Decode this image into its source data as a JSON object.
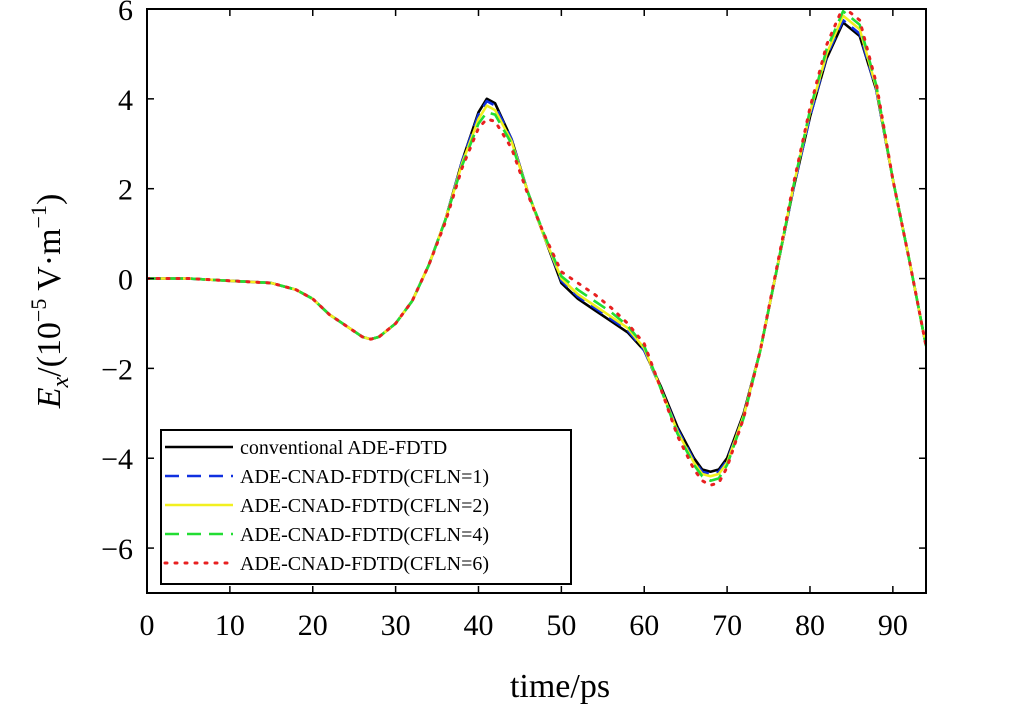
{
  "chart_data": {
    "type": "line",
    "title": "",
    "xlabel": "time/ps",
    "ylabel_parts": {
      "var": "E",
      "sub": "x",
      "pre": "/(10",
      "exp1": "−5",
      "mid": " V·m",
      "exp2": "−1",
      "post": ")"
    },
    "xlim": [
      0,
      94
    ],
    "ylim": [
      -7,
      6
    ],
    "x_ticks": [
      0,
      10,
      20,
      30,
      40,
      50,
      60,
      70,
      80,
      90
    ],
    "y_ticks": [
      -6,
      -4,
      -2,
      0,
      2,
      4,
      6
    ],
    "x_tick_labels": [
      "0",
      "10",
      "20",
      "30",
      "40",
      "50",
      "60",
      "70",
      "80",
      "90"
    ],
    "y_tick_labels": [
      "−6",
      "−4",
      "−2",
      "0",
      "2",
      "4",
      "6"
    ],
    "grid": false,
    "legend_position": "lower-left",
    "series": [
      {
        "name": "conventional ADE-FDTD",
        "color": "#000000",
        "dash": "solid",
        "x": [
          0,
          5,
          10,
          15,
          18,
          20,
          22,
          24,
          26,
          27,
          28,
          30,
          32,
          34,
          36,
          38,
          40,
          41,
          42,
          44,
          46,
          48,
          50,
          52,
          54,
          56,
          58,
          60,
          62,
          64,
          66,
          67,
          68,
          69,
          70,
          72,
          74,
          76,
          78,
          80,
          82,
          84,
          86,
          88,
          90,
          92,
          94
        ],
        "y": [
          0,
          0,
          -0.05,
          -0.1,
          -0.25,
          -0.45,
          -0.8,
          -1.05,
          -1.3,
          -1.35,
          -1.3,
          -1.0,
          -0.5,
          0.3,
          1.3,
          2.6,
          3.7,
          4.0,
          3.9,
          3.1,
          1.9,
          0.9,
          -0.1,
          -0.45,
          -0.7,
          -0.95,
          -1.2,
          -1.6,
          -2.4,
          -3.3,
          -4.0,
          -4.25,
          -4.3,
          -4.25,
          -4.0,
          -3.0,
          -1.6,
          0.2,
          2.0,
          3.6,
          4.9,
          5.7,
          5.4,
          4.2,
          2.2,
          0.4,
          -1.5
        ]
      },
      {
        "name": "ADE-CNAD-FDTD(CFLN=1)",
        "color": "#1030e0",
        "dash": "dash",
        "x": [
          0,
          5,
          10,
          15,
          18,
          20,
          22,
          24,
          26,
          27,
          28,
          30,
          32,
          34,
          36,
          38,
          40,
          41,
          42,
          44,
          46,
          48,
          50,
          52,
          54,
          56,
          58,
          60,
          62,
          64,
          66,
          67,
          68,
          69,
          70,
          72,
          74,
          76,
          78,
          80,
          82,
          84,
          86,
          88,
          90,
          92,
          94
        ],
        "y": [
          0,
          0,
          -0.05,
          -0.1,
          -0.25,
          -0.45,
          -0.8,
          -1.05,
          -1.3,
          -1.35,
          -1.3,
          -1.0,
          -0.5,
          0.3,
          1.3,
          2.6,
          3.65,
          3.95,
          3.85,
          3.1,
          1.9,
          0.9,
          -0.05,
          -0.4,
          -0.65,
          -0.9,
          -1.15,
          -1.6,
          -2.45,
          -3.35,
          -4.05,
          -4.3,
          -4.35,
          -4.3,
          -4.05,
          -3.05,
          -1.6,
          0.2,
          2.0,
          3.6,
          4.95,
          5.75,
          5.45,
          4.2,
          2.2,
          0.4,
          -1.5
        ]
      },
      {
        "name": "ADE-CNAD-FDTD(CFLN=2)",
        "color": "#f2f020",
        "dash": "solid",
        "x": [
          0,
          5,
          10,
          15,
          18,
          20,
          22,
          24,
          26,
          27,
          28,
          30,
          32,
          34,
          36,
          38,
          40,
          41,
          42,
          44,
          46,
          48,
          50,
          52,
          54,
          56,
          58,
          60,
          62,
          64,
          66,
          67,
          68,
          69,
          70,
          72,
          74,
          76,
          78,
          80,
          82,
          84,
          86,
          88,
          90,
          92,
          94
        ],
        "y": [
          0,
          0,
          -0.05,
          -0.1,
          -0.25,
          -0.45,
          -0.8,
          -1.05,
          -1.3,
          -1.35,
          -1.3,
          -1.0,
          -0.5,
          0.3,
          1.3,
          2.55,
          3.55,
          3.85,
          3.75,
          3.05,
          1.9,
          0.9,
          0.0,
          -0.35,
          -0.6,
          -0.85,
          -1.1,
          -1.55,
          -2.45,
          -3.4,
          -4.1,
          -4.35,
          -4.4,
          -4.35,
          -4.1,
          -3.05,
          -1.6,
          0.2,
          2.05,
          3.7,
          5.0,
          5.85,
          5.55,
          4.25,
          2.2,
          0.4,
          -1.5
        ]
      },
      {
        "name": "ADE-CNAD-FDTD(CFLN=4)",
        "color": "#22dd33",
        "dash": "dash",
        "x": [
          0,
          5,
          10,
          15,
          18,
          20,
          22,
          24,
          26,
          27,
          28,
          30,
          32,
          34,
          36,
          38,
          40,
          41,
          42,
          44,
          46,
          48,
          50,
          52,
          54,
          56,
          58,
          60,
          62,
          64,
          66,
          67,
          68,
          69,
          70,
          72,
          74,
          76,
          78,
          80,
          82,
          84,
          86,
          88,
          90,
          92,
          94
        ],
        "y": [
          0,
          0,
          -0.05,
          -0.1,
          -0.25,
          -0.45,
          -0.8,
          -1.05,
          -1.3,
          -1.35,
          -1.3,
          -1.0,
          -0.5,
          0.3,
          1.3,
          2.5,
          3.45,
          3.7,
          3.65,
          3.0,
          1.9,
          0.95,
          0.05,
          -0.25,
          -0.5,
          -0.75,
          -1.05,
          -1.5,
          -2.45,
          -3.45,
          -4.15,
          -4.4,
          -4.5,
          -4.45,
          -4.15,
          -3.1,
          -1.6,
          0.2,
          2.05,
          3.75,
          5.1,
          5.95,
          5.65,
          4.3,
          2.2,
          0.4,
          -1.5
        ]
      },
      {
        "name": "ADE-CNAD-FDTD(CFLN=6)",
        "color": "#e82020",
        "dash": "dot",
        "x": [
          0,
          5,
          10,
          15,
          18,
          20,
          22,
          24,
          26,
          27,
          28,
          30,
          32,
          34,
          36,
          38,
          40,
          41,
          42,
          44,
          46,
          48,
          50,
          52,
          54,
          56,
          58,
          60,
          62,
          64,
          66,
          67,
          68,
          69,
          70,
          72,
          74,
          76,
          78,
          80,
          82,
          84,
          86,
          88,
          90,
          92,
          94
        ],
        "y": [
          0,
          0,
          -0.05,
          -0.1,
          -0.25,
          -0.45,
          -0.8,
          -1.05,
          -1.3,
          -1.35,
          -1.3,
          -1.0,
          -0.5,
          0.3,
          1.25,
          2.45,
          3.35,
          3.55,
          3.5,
          2.9,
          1.85,
          0.95,
          0.15,
          -0.1,
          -0.35,
          -0.65,
          -1.0,
          -1.45,
          -2.45,
          -3.5,
          -4.25,
          -4.5,
          -4.6,
          -4.55,
          -4.2,
          -3.1,
          -1.6,
          0.25,
          2.1,
          3.8,
          5.2,
          6.05,
          5.75,
          4.35,
          2.2,
          0.4,
          -1.5
        ]
      }
    ]
  }
}
